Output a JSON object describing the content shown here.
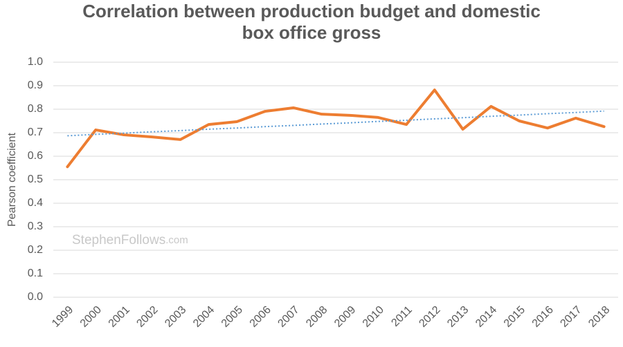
{
  "chart_data": {
    "type": "line",
    "title": [
      "Correlation between production budget and domestic",
      "box office gross"
    ],
    "y_label": "Pearson coefficient",
    "annotations": [
      "StephenFollows",
      ".com"
    ],
    "categories": [
      "1999",
      "2000",
      "2001",
      "2002",
      "2003",
      "2004",
      "2005",
      "2006",
      "2007",
      "2008",
      "2009",
      "2010",
      "2011",
      "2012",
      "2013",
      "2014",
      "2015",
      "2016",
      "2017",
      "2018"
    ],
    "series": [
      {
        "color": "#ed7d31",
        "style": "solid",
        "values": [
          0.555,
          0.712,
          0.691,
          0.682,
          0.671,
          0.735,
          0.747,
          0.791,
          0.806,
          0.779,
          0.774,
          0.765,
          0.735,
          0.882,
          0.715,
          0.812,
          0.75,
          0.72,
          0.762,
          0.726
        ]
      },
      {
        "color": "#5b9bd5",
        "style": "dotted",
        "values": [
          0.687,
          0.693,
          0.698,
          0.704,
          0.709,
          0.715,
          0.72,
          0.726,
          0.731,
          0.737,
          0.742,
          0.748,
          0.753,
          0.759,
          0.764,
          0.77,
          0.775,
          0.781,
          0.786,
          0.792
        ]
      }
    ],
    "ylim": [
      0,
      1
    ],
    "yticks": [
      {
        "value": 0,
        "label": "0.0"
      },
      0.1,
      0.2,
      0.3,
      0.4,
      0.5,
      0.6,
      0.7,
      0.8,
      0.9,
      {
        "value": 1,
        "label": "1.0"
      }
    ],
    "grid": true
  }
}
